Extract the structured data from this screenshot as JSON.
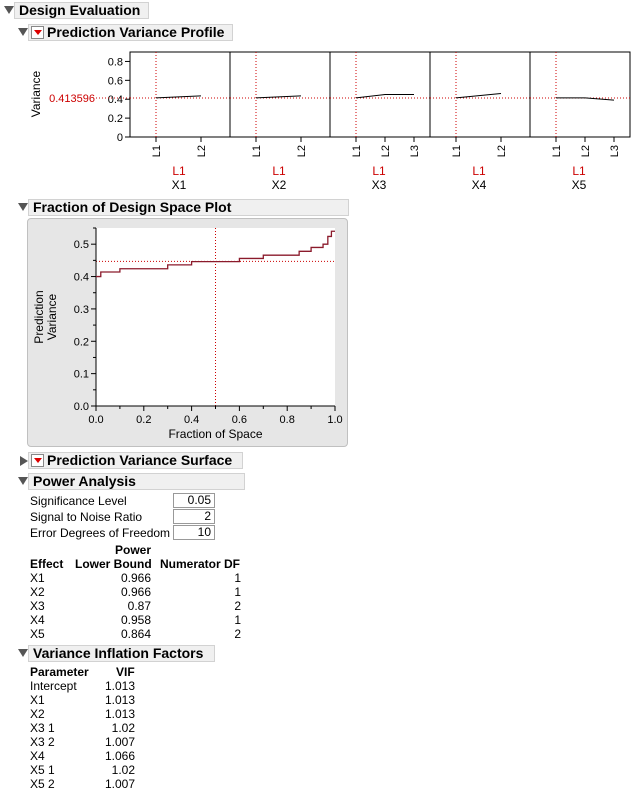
{
  "sections": {
    "design_evaluation": "Design Evaluation",
    "prediction_variance_profile": "Prediction Variance Profile",
    "fraction_of_design_space": "Fraction of Design Space Plot",
    "prediction_variance_surface": "Prediction Variance Surface",
    "power_analysis": "Power Analysis",
    "variance_inflation_factors": "Variance Inflation Factors"
  },
  "profile": {
    "y_label": "Variance",
    "current_value": "0.413596",
    "y_ticks": [
      "0.8",
      "0.6",
      "0.4",
      "0.2",
      "0"
    ],
    "factors": [
      {
        "name": "X1",
        "current": "L1",
        "levels": [
          "L1",
          "L2"
        ],
        "values": [
          0.414,
          0.436
        ]
      },
      {
        "name": "X2",
        "current": "L1",
        "levels": [
          "L1",
          "L2"
        ],
        "values": [
          0.414,
          0.436
        ]
      },
      {
        "name": "X3",
        "current": "L1",
        "levels": [
          "L1",
          "L2",
          "L3"
        ],
        "values": [
          0.414,
          0.45,
          0.45
        ]
      },
      {
        "name": "X4",
        "current": "L1",
        "levels": [
          "L1",
          "L2"
        ],
        "values": [
          0.414,
          0.46
        ]
      },
      {
        "name": "X5",
        "current": "L1",
        "levels": [
          "L1",
          "L2",
          "L3"
        ],
        "values": [
          0.414,
          0.414,
          0.39
        ]
      }
    ],
    "colors": {
      "trace": "#000000",
      "crosshair": "#cc0000",
      "current": "#cc0000"
    }
  },
  "chart_data": {
    "type": "line",
    "title": "",
    "xlabel": "Fraction of Space",
    "ylabel": "Prediction Variance",
    "xlim": [
      0,
      1
    ],
    "ylim": [
      0,
      0.55
    ],
    "x_ticks": [
      "0.0",
      "0.2",
      "0.4",
      "0.6",
      "0.8",
      "1.0"
    ],
    "y_ticks": [
      "0.0",
      "0.1",
      "0.2",
      "0.3",
      "0.4",
      "0.5"
    ],
    "reference": {
      "x": 0.5,
      "y": 0.447
    },
    "series": [
      {
        "x": [
          0,
          0.02,
          0.02,
          0.1,
          0.1,
          0.3,
          0.3,
          0.4,
          0.4,
          0.6,
          0.6,
          0.7,
          0.7,
          0.85,
          0.85,
          0.9,
          0.9,
          0.95,
          0.95,
          0.97,
          0.97,
          0.985,
          0.985,
          1.0
        ],
        "y": [
          0.4,
          0.4,
          0.414,
          0.414,
          0.424,
          0.424,
          0.436,
          0.436,
          0.446,
          0.446,
          0.456,
          0.456,
          0.466,
          0.466,
          0.478,
          0.478,
          0.49,
          0.49,
          0.5,
          0.5,
          0.524,
          0.524,
          0.54,
          0.54
        ]
      }
    ],
    "colors": {
      "line": "#8b1a2b",
      "reference": "#cc0000"
    }
  },
  "power": {
    "significance_label": "Significance Level",
    "significance_value": "0.05",
    "snr_label": "Signal to Noise Ratio",
    "snr_value": "2",
    "error_df_label": "Error Degrees of Freedom",
    "error_df_value": "10",
    "col_effect": "Effect",
    "col_power_top": "Power",
    "col_power_bottom": "Lower Bound",
    "col_numdf": "Numerator DF",
    "rows": [
      {
        "effect": "X1",
        "power": "0.966",
        "df": "1"
      },
      {
        "effect": "X2",
        "power": "0.966",
        "df": "1"
      },
      {
        "effect": "X3",
        "power": "0.87",
        "df": "2"
      },
      {
        "effect": "X4",
        "power": "0.958",
        "df": "1"
      },
      {
        "effect": "X5",
        "power": "0.864",
        "df": "2"
      }
    ]
  },
  "vif": {
    "col_parameter": "Parameter",
    "col_vif": "VIF",
    "rows": [
      {
        "param": "Intercept",
        "vif": "1.013"
      },
      {
        "param": "X1",
        "vif": "1.013"
      },
      {
        "param": "X2",
        "vif": "1.013"
      },
      {
        "param": "X3 1",
        "vif": "1.02"
      },
      {
        "param": "X3 2",
        "vif": "1.007"
      },
      {
        "param": "X4",
        "vif": "1.066"
      },
      {
        "param": "X5 1",
        "vif": "1.02"
      },
      {
        "param": "X5 2",
        "vif": "1.007"
      }
    ]
  }
}
